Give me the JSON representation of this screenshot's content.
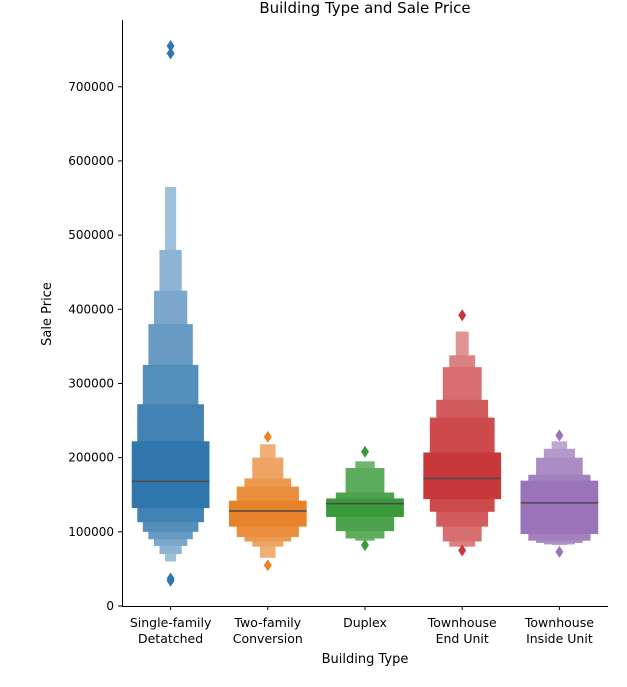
{
  "chart_data": {
    "type": "boxen",
    "title": "Building Type and Sale Price",
    "xlabel": "Building Type",
    "ylabel": "Sale Price",
    "ylim": [
      0,
      790000
    ],
    "yticks": [
      0,
      100000,
      200000,
      300000,
      400000,
      500000,
      600000,
      700000
    ],
    "grid": false,
    "categories": [
      {
        "line1": "Single-family",
        "line2": "Detatched",
        "color": "#2f76ad"
      },
      {
        "line1": "Two-family",
        "line2": "Conversion",
        "color": "#e8822a"
      },
      {
        "line1": "Duplex",
        "line2": "",
        "color": "#3a9a3a"
      },
      {
        "line1": "Townhouse",
        "line2": "End Unit",
        "color": "#c8383a"
      },
      {
        "line1": "Townhouse",
        "line2": "Inside Unit",
        "color": "#9a73b8"
      }
    ],
    "series": [
      {
        "median": 168000,
        "boxes": [
          [
            132000,
            222000
          ],
          [
            113000,
            272000
          ],
          [
            100000,
            325000
          ],
          [
            90000,
            380000
          ],
          [
            81000,
            425000
          ],
          [
            70000,
            480000
          ],
          [
            60000,
            565000
          ]
        ],
        "outliers": [
          755000,
          745000,
          37000,
          34000
        ]
      },
      {
        "median": 128000,
        "boxes": [
          [
            107000,
            142000
          ],
          [
            93000,
            161000
          ],
          [
            87000,
            172000
          ],
          [
            80000,
            200000
          ],
          [
            65000,
            218000
          ]
        ],
        "outliers": [
          228000,
          55000
        ]
      },
      {
        "median": 138000,
        "boxes": [
          [
            120000,
            145000
          ],
          [
            101000,
            153000
          ],
          [
            91000,
            186000
          ],
          [
            88000,
            195000
          ]
        ],
        "outliers": [
          208000,
          82000
        ]
      },
      {
        "median": 172000,
        "boxes": [
          [
            144000,
            207000
          ],
          [
            127000,
            254000
          ],
          [
            107000,
            278000
          ],
          [
            87000,
            322000
          ],
          [
            80000,
            338000
          ],
          [
            80000,
            370000
          ]
        ],
        "outliers": [
          392000,
          75000
        ]
      },
      {
        "median": 139000,
        "boxes": [
          [
            97000,
            169000
          ],
          [
            88000,
            177000
          ],
          [
            85000,
            200000
          ],
          [
            83000,
            212000
          ],
          [
            82000,
            222000
          ]
        ],
        "outliers": [
          230000,
          73000
        ]
      }
    ]
  }
}
